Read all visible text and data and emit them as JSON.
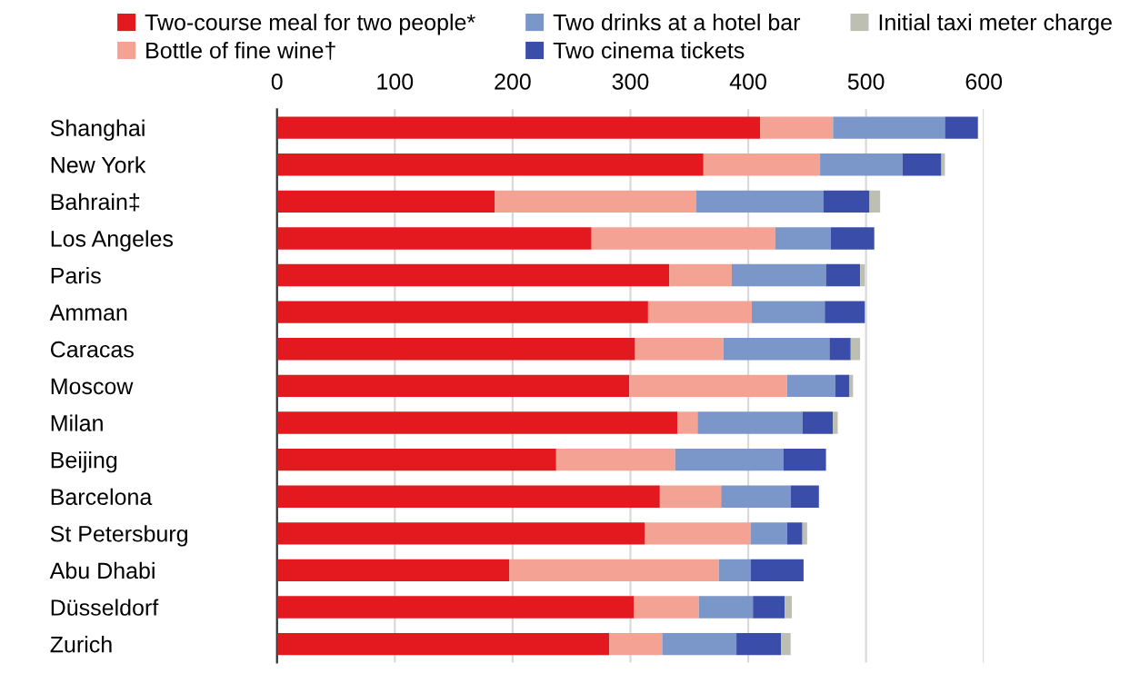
{
  "chart_data": {
    "type": "bar",
    "orientation": "horizontal",
    "stacked": true,
    "categories": [
      "Shanghai",
      "New York",
      "Bahrain‡",
      "Los Angeles",
      "Paris",
      "Amman",
      "Caracas",
      "Moscow",
      "Milan",
      "Beijing",
      "Barcelona",
      "St Petersburg",
      "Abu Dhabi",
      "Düsseldorf",
      "Zurich"
    ],
    "series": [
      {
        "name": "Two-course meal for two people*",
        "color": "#e3191f",
        "values": [
          410,
          362,
          185,
          267,
          333,
          315,
          304,
          299,
          340,
          237,
          325,
          312,
          197,
          303,
          282
        ]
      },
      {
        "name": "Bottle of fine wine†",
        "color": "#f4a293",
        "values": [
          62,
          99,
          171,
          156,
          53,
          88,
          75,
          134,
          17,
          101,
          52,
          90,
          178,
          55,
          45
        ]
      },
      {
        "name": "Two drinks at a hotel bar",
        "color": "#7b96c8",
        "values": [
          95,
          70,
          108,
          47,
          80,
          62,
          90,
          41,
          89,
          92,
          59,
          31,
          27,
          46,
          63
        ]
      },
      {
        "name": "Two cinema tickets",
        "color": "#3a4da8",
        "values": [
          28,
          33,
          39,
          37,
          29,
          34,
          18,
          12,
          26,
          36,
          24,
          13,
          45,
          27,
          38
        ]
      },
      {
        "name": "Initial taxi meter charge",
        "color": "#bdbfb2",
        "values": [
          null,
          3,
          9,
          null,
          4,
          null,
          8,
          3,
          4,
          null,
          null,
          4,
          null,
          6,
          8
        ]
      }
    ],
    "xlim": [
      0,
      600
    ],
    "xticks": [
      0,
      100,
      200,
      300,
      400,
      500,
      600
    ],
    "grid": "x",
    "legend": "top"
  }
}
